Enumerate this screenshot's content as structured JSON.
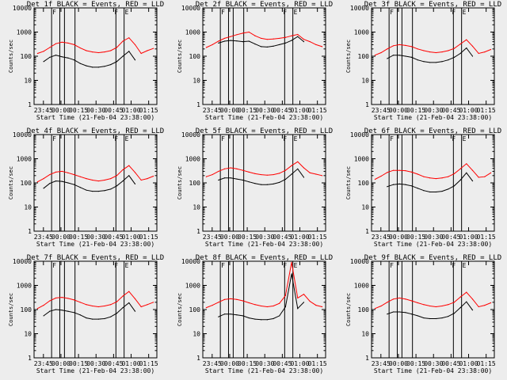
{
  "chart_data": [
    {
      "type": "line",
      "title": "Det 1f BLACK = Events, RED = LLD",
      "xlabel": "Start Time (21-Feb-04 23:38:00)",
      "ylabel": "Counts/sec",
      "yscale": "log",
      "ylim": [
        1,
        10000
      ],
      "xlim": [
        -8,
        97
      ],
      "xtick_labels": [
        "23:45",
        "00:00",
        "00:15",
        "00:30",
        "00:45",
        "01:00",
        "01:15"
      ],
      "ytick_labels": [
        "1",
        "10",
        "100",
        "1000",
        "10000"
      ],
      "markers": [
        "F",
        "F",
        "E"
      ],
      "series": [
        {
          "color": "#ff0000",
          "values": [
            130,
            160,
            230,
            330,
            380,
            350,
            300,
            220,
            170,
            150,
            140,
            150,
            170,
            230,
            420,
            580,
            300,
            130,
            170,
            210
          ]
        },
        {
          "color": "#000000",
          "values": [
            0,
            60,
            90,
            110,
            95,
            85,
            70,
            50,
            40,
            35,
            35,
            38,
            45,
            60,
            100,
            160,
            70,
            0,
            0,
            0
          ]
        }
      ]
    },
    {
      "type": "line",
      "title": "Det 2f BLACK = Events, RED = LLD",
      "xlabel": "Start Time (21-Feb-04 23:38:00)",
      "ylabel": "Counts/sec",
      "yscale": "log",
      "ylim": [
        1,
        10000
      ],
      "xlim": [
        -8,
        97
      ],
      "xtick_labels": [
        "23:45",
        "00:00",
        "00:15",
        "00:30",
        "00:45",
        "01:00",
        "01:15"
      ],
      "ytick_labels": [
        "1",
        "10",
        "100",
        "1000",
        "10000"
      ],
      "markers": [
        "F",
        "F",
        "E"
      ],
      "series": [
        {
          "color": "#ff0000",
          "values": [
            230,
            300,
            420,
            550,
            650,
            780,
            900,
            1000,
            700,
            550,
            500,
            520,
            550,
            600,
            700,
            800,
            500,
            400,
            300,
            250
          ]
        },
        {
          "color": "#000000",
          "values": [
            0,
            0,
            350,
            420,
            450,
            430,
            400,
            420,
            320,
            250,
            240,
            260,
            300,
            350,
            450,
            650,
            400,
            0,
            0,
            0
          ]
        }
      ]
    },
    {
      "type": "line",
      "title": "Det 3f BLACK = Events, RED = LLD",
      "xlabel": "Start Time (21-Feb-04 23:38:00)",
      "ylabel": "Counts/sec",
      "yscale": "log",
      "ylim": [
        1,
        10000
      ],
      "xlim": [
        -8,
        97
      ],
      "xtick_labels": [
        "23:45",
        "00:00",
        "00:15",
        "00:30",
        "00:45",
        "01:00",
        "01:15"
      ],
      "ytick_labels": [
        "1",
        "10",
        "100",
        "1000",
        "10000"
      ],
      "markers": [
        "F",
        "F",
        "E"
      ],
      "series": [
        {
          "color": "#ff0000",
          "values": [
            110,
            140,
            200,
            270,
            300,
            280,
            250,
            200,
            170,
            150,
            140,
            150,
            170,
            210,
            320,
            480,
            260,
            130,
            150,
            190
          ]
        },
        {
          "color": "#000000",
          "values": [
            0,
            0,
            80,
            110,
            110,
            100,
            90,
            70,
            60,
            55,
            55,
            60,
            70,
            90,
            130,
            220,
            100,
            0,
            0,
            0
          ]
        }
      ]
    },
    {
      "type": "line",
      "title": "Det 4f BLACK = Events, RED = LLD",
      "xlabel": "Start Time (21-Feb-04 23:38:00)",
      "ylabel": "Counts/sec",
      "yscale": "log",
      "ylim": [
        1,
        10000
      ],
      "xlim": [
        -8,
        97
      ],
      "xtick_labels": [
        "23:45",
        "00:00",
        "00:15",
        "00:30",
        "00:45",
        "01:00",
        "01:15"
      ],
      "ytick_labels": [
        "1",
        "10",
        "100",
        "1000",
        "10000"
      ],
      "markers": [
        "F",
        "F",
        "E"
      ],
      "series": [
        {
          "color": "#ff0000",
          "values": [
            110,
            150,
            220,
            280,
            300,
            260,
            220,
            180,
            150,
            130,
            120,
            130,
            150,
            200,
            350,
            520,
            270,
            130,
            150,
            190
          ]
        },
        {
          "color": "#000000",
          "values": [
            0,
            60,
            95,
            120,
            115,
            100,
            85,
            65,
            50,
            45,
            45,
            48,
            55,
            75,
            120,
            200,
            90,
            0,
            0,
            0
          ]
        }
      ]
    },
    {
      "type": "line",
      "title": "Det 5f BLACK = Events, RED = LLD",
      "xlabel": "Start Time (21-Feb-04 23:38:00)",
      "ylabel": "Counts/sec",
      "yscale": "log",
      "ylim": [
        1,
        10000
      ],
      "xlim": [
        -8,
        97
      ],
      "xtick_labels": [
        "23:45",
        "00:00",
        "00:15",
        "00:30",
        "00:45",
        "01:00",
        "01:15"
      ],
      "ytick_labels": [
        "1",
        "10",
        "100",
        "1000",
        "10000"
      ],
      "markers": [
        "F",
        "F",
        "E"
      ],
      "series": [
        {
          "color": "#ff0000",
          "values": [
            180,
            220,
            300,
            380,
            420,
            380,
            330,
            280,
            240,
            220,
            210,
            220,
            250,
            330,
            520,
            750,
            420,
            260,
            230,
            200
          ]
        },
        {
          "color": "#000000",
          "values": [
            0,
            0,
            130,
            160,
            160,
            145,
            130,
            110,
            95,
            85,
            85,
            90,
            105,
            140,
            230,
            380,
            170,
            0,
            0,
            0
          ]
        }
      ]
    },
    {
      "type": "line",
      "title": "Det 6f BLACK = Events, RED = LLD",
      "xlabel": "Start Time (21-Feb-04 23:38:00)",
      "ylabel": "Counts/sec",
      "yscale": "log",
      "ylim": [
        1,
        10000
      ],
      "xlim": [
        -8,
        97
      ],
      "xtick_labels": [
        "23:45",
        "00:00",
        "00:15",
        "00:30",
        "00:45",
        "01:00",
        "01:15"
      ],
      "ytick_labels": [
        "1",
        "10",
        "100",
        "1000",
        "10000"
      ],
      "markers": [
        "F",
        "F",
        "E"
      ],
      "series": [
        {
          "color": "#ff0000",
          "values": [
            140,
            190,
            270,
            330,
            330,
            320,
            280,
            230,
            180,
            160,
            150,
            160,
            180,
            240,
            380,
            620,
            330,
            170,
            180,
            260
          ]
        },
        {
          "color": "#000000",
          "values": [
            0,
            0,
            70,
            85,
            90,
            85,
            75,
            60,
            48,
            42,
            42,
            45,
            55,
            75,
            130,
            260,
            120,
            0,
            0,
            0
          ]
        }
      ]
    },
    {
      "type": "line",
      "title": "Det 7f BLACK = Events, RED = LLD",
      "xlabel": "Start Time (21-Feb-04 23:38:00)",
      "ylabel": "Counts/sec",
      "yscale": "log",
      "ylim": [
        1,
        10000
      ],
      "xlim": [
        -8,
        97
      ],
      "xtick_labels": [
        "23:45",
        "00:00",
        "00:15",
        "00:30",
        "00:45",
        "01:00",
        "01:15"
      ],
      "ytick_labels": [
        "1",
        "10",
        "100",
        "1000",
        "10000"
      ],
      "markers": [
        "F",
        "F",
        "E"
      ],
      "series": [
        {
          "color": "#ff0000",
          "values": [
            110,
            150,
            230,
            300,
            320,
            290,
            250,
            200,
            160,
            140,
            130,
            140,
            160,
            210,
            360,
            560,
            280,
            130,
            160,
            200
          ]
        },
        {
          "color": "#000000",
          "values": [
            0,
            55,
            85,
            100,
            95,
            85,
            75,
            60,
            45,
            40,
            40,
            42,
            50,
            70,
            120,
            190,
            85,
            0,
            0,
            0
          ]
        }
      ]
    },
    {
      "type": "line",
      "title": "Det 8f BLACK = Events, RED = LLD",
      "xlabel": "Start Time (21-Feb-04 23:38:00)",
      "ylabel": "Counts/sec",
      "yscale": "log",
      "ylim": [
        1,
        10000
      ],
      "xlim": [
        -8,
        97
      ],
      "xtick_labels": [
        "23:45",
        "00:00",
        "00:15",
        "00:30",
        "00:45",
        "01:00",
        "01:15"
      ],
      "ytick_labels": [
        "1",
        "10",
        "100",
        "1000",
        "10000"
      ],
      "markers": [
        "F",
        "F",
        "E"
      ],
      "series": [
        {
          "color": "#ff0000",
          "values": [
            120,
            150,
            200,
            260,
            280,
            260,
            230,
            190,
            160,
            140,
            130,
            140,
            180,
            380,
            9000,
            300,
            430,
            220,
            150,
            130
          ]
        },
        {
          "color": "#000000",
          "values": [
            0,
            0,
            50,
            65,
            65,
            60,
            55,
            45,
            40,
            38,
            38,
            42,
            55,
            130,
            3000,
            110,
            200,
            0,
            0,
            0
          ]
        }
      ]
    },
    {
      "type": "line",
      "title": "Det 9f BLACK = Events, RED = LLD",
      "xlabel": "Start Time (21-Feb-04 23:38:00)",
      "ylabel": "Counts/sec",
      "yscale": "log",
      "ylim": [
        1,
        10000
      ],
      "xlim": [
        -8,
        97
      ],
      "xtick_labels": [
        "23:45",
        "00:00",
        "00:15",
        "00:30",
        "00:45",
        "01:00",
        "01:15"
      ],
      "ytick_labels": [
        "1",
        "10",
        "100",
        "1000",
        "10000"
      ],
      "markers": [
        "F",
        "F",
        "E"
      ],
      "series": [
        {
          "color": "#ff0000",
          "values": [
            110,
            140,
            200,
            270,
            300,
            270,
            230,
            190,
            160,
            140,
            130,
            140,
            160,
            200,
            330,
            520,
            270,
            130,
            150,
            190
          ]
        },
        {
          "color": "#000000",
          "values": [
            0,
            0,
            65,
            80,
            80,
            75,
            65,
            55,
            45,
            42,
            42,
            45,
            52,
            70,
            120,
            210,
            95,
            0,
            0,
            0
          ]
        }
      ]
    }
  ]
}
